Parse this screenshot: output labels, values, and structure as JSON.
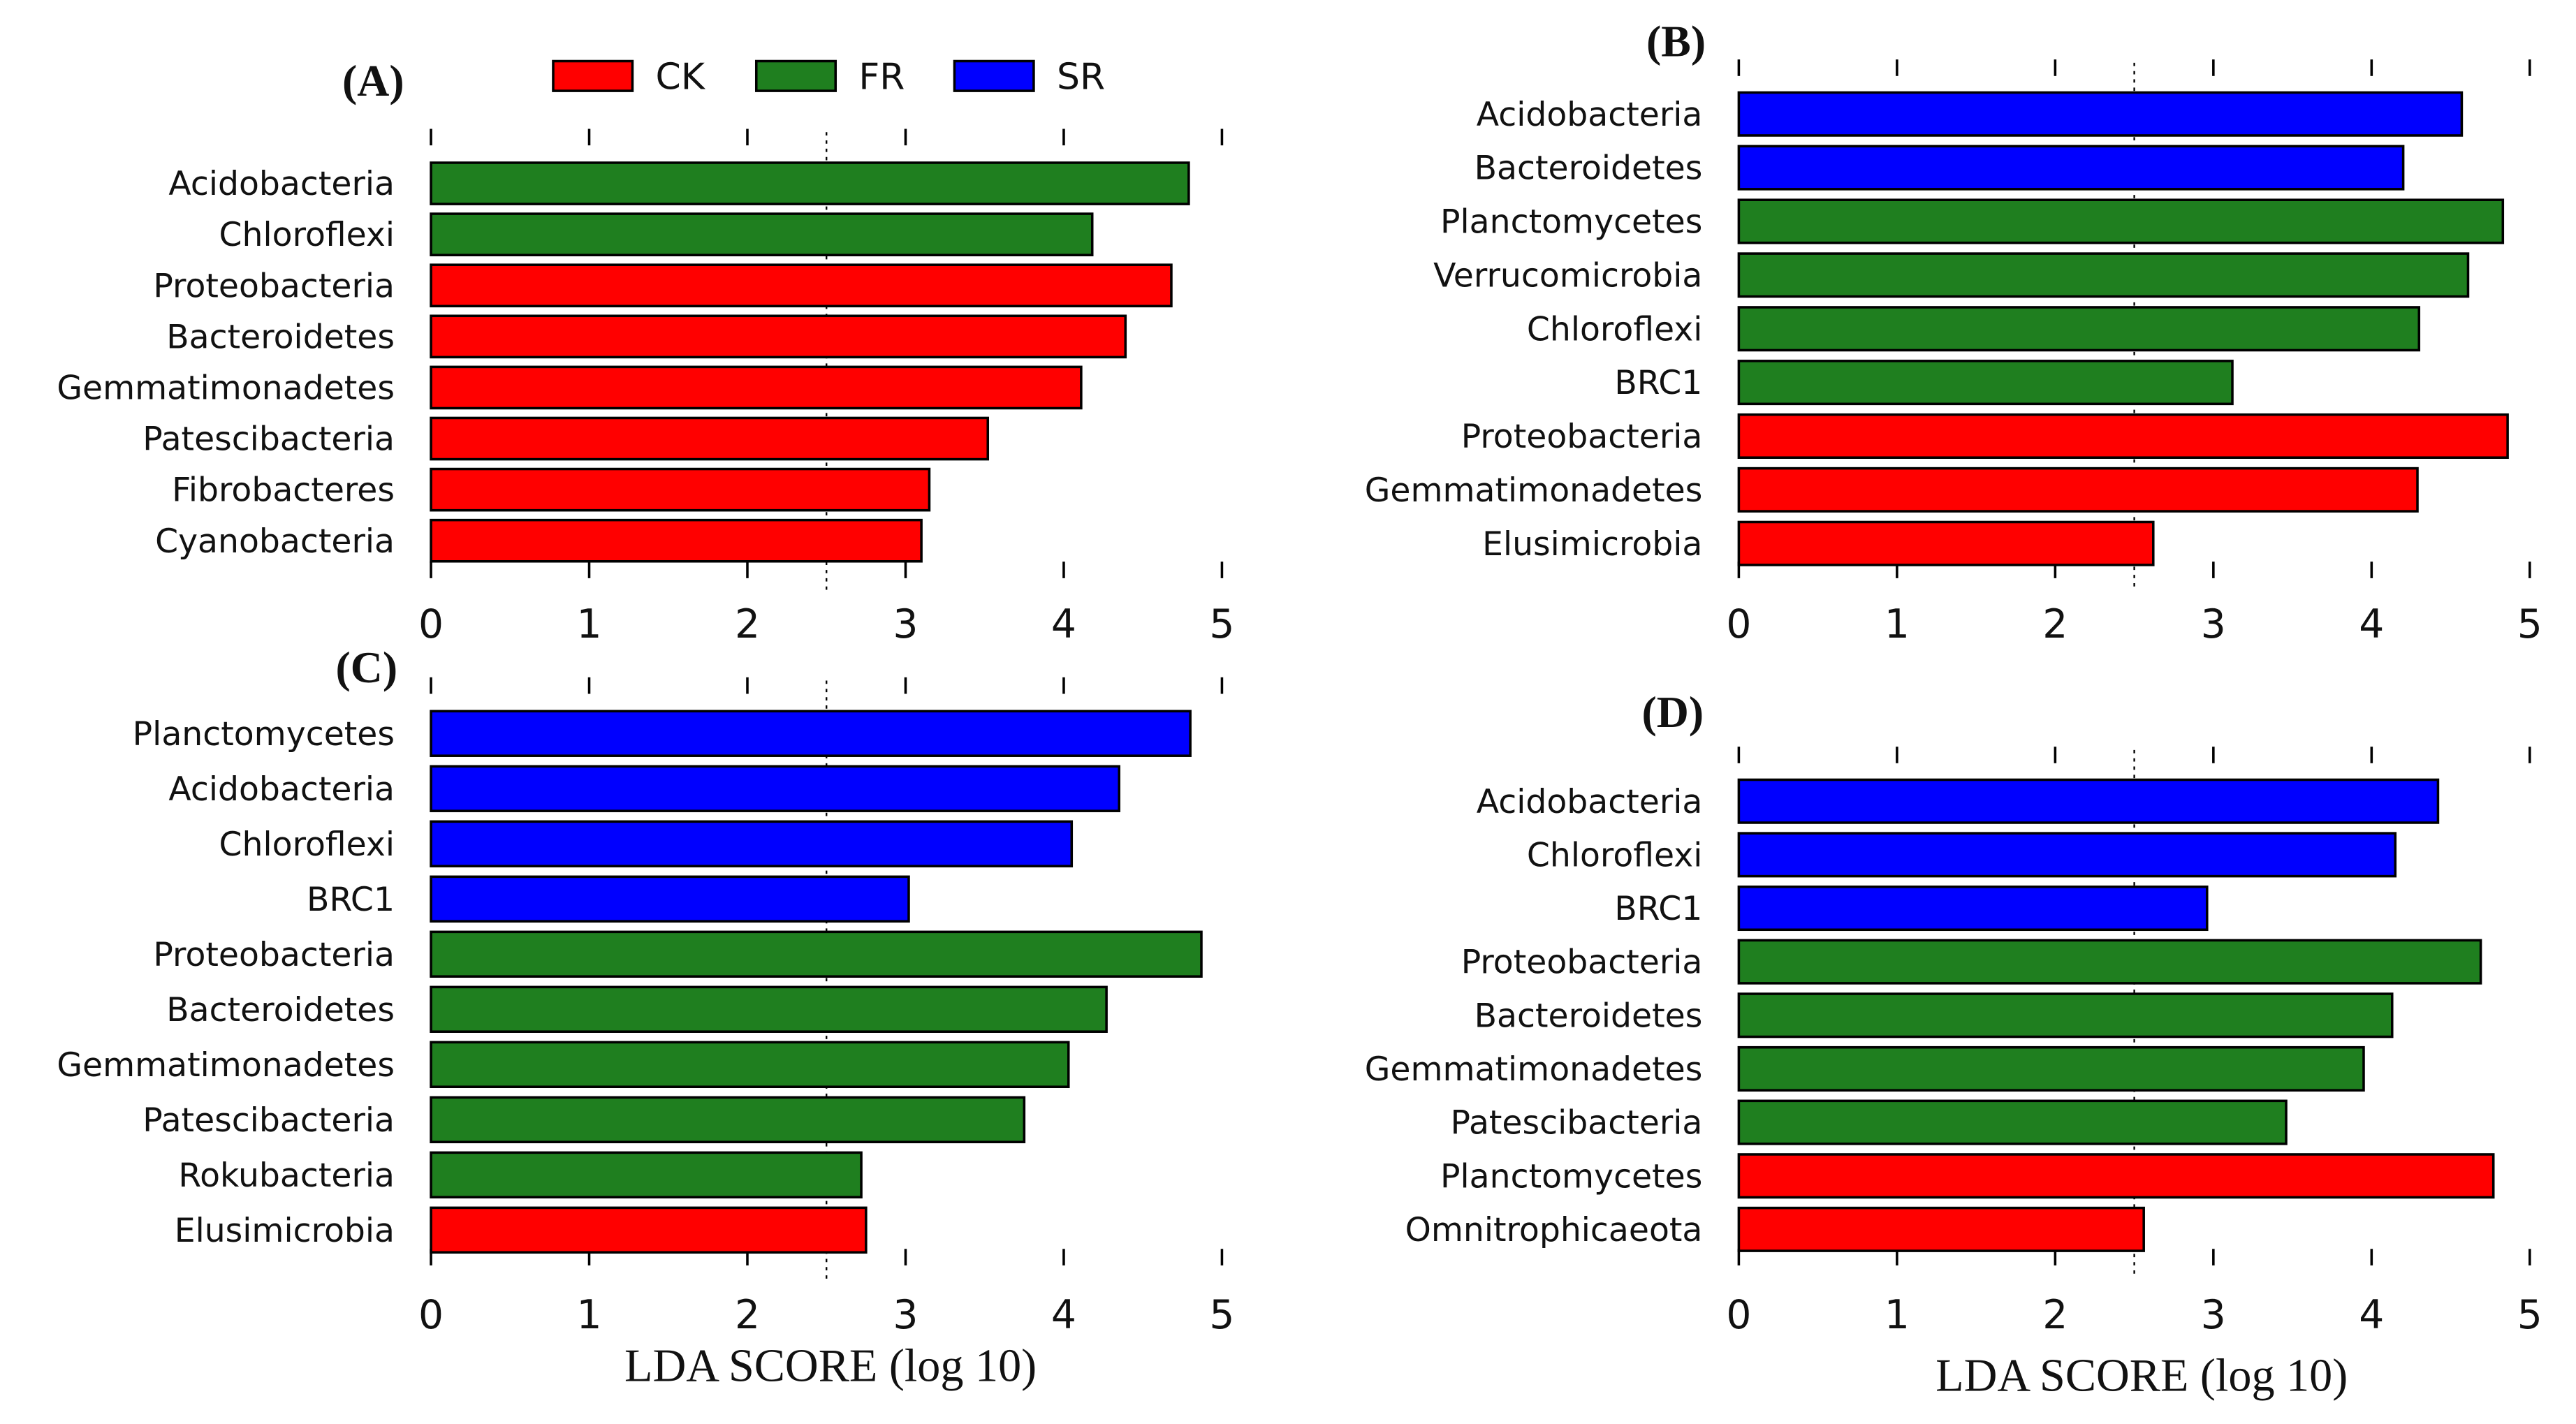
{
  "legend": [
    {
      "label": "CK",
      "color": "#ff0000"
    },
    {
      "label": "FR",
      "color": "#1f7f1f"
    },
    {
      "label": "SR",
      "color": "#0000ff"
    }
  ],
  "chart_data": [
    {
      "type": "bar",
      "orientation": "horizontal",
      "title": "(A)",
      "xlabel": "",
      "xlim": [
        0,
        5
      ],
      "xticks": [
        "0",
        "1",
        "2",
        "3",
        "4",
        "5"
      ],
      "threshold": 2.5,
      "categories": [
        "Acidobacteria",
        "Chloroflexi",
        "Proteobacteria",
        "Bacteroidetes",
        "Gemmatimonadetes",
        "Patescibacteria",
        "Fibrobacteres",
        "Cyanobacteria"
      ],
      "values": [
        4.79,
        4.18,
        4.68,
        4.39,
        4.11,
        3.52,
        3.15,
        3.1
      ],
      "groups": [
        "FR",
        "FR",
        "CK",
        "CK",
        "CK",
        "CK",
        "CK",
        "CK"
      ]
    },
    {
      "type": "bar",
      "orientation": "horizontal",
      "title": "(B)",
      "xlabel": "",
      "xlim": [
        0,
        5
      ],
      "xticks": [
        "0",
        "1",
        "2",
        "3",
        "4",
        "5"
      ],
      "threshold": 2.5,
      "categories": [
        "Acidobacteria",
        "Bacteroidetes",
        "Planctomycetes",
        "Verrucomicrobia",
        "Chloroflexi",
        "BRC1",
        "Proteobacteria",
        "Gemmatimonadetes",
        "Elusimicrobia"
      ],
      "values": [
        4.57,
        4.2,
        4.83,
        4.61,
        4.3,
        3.12,
        4.86,
        4.29,
        2.62
      ],
      "groups": [
        "SR",
        "SR",
        "FR",
        "FR",
        "FR",
        "FR",
        "CK",
        "CK",
        "CK"
      ]
    },
    {
      "type": "bar",
      "orientation": "horizontal",
      "title": "(C)",
      "xlabel": "LDA SCORE (log 10)",
      "xlim": [
        0,
        5
      ],
      "xticks": [
        "0",
        "1",
        "2",
        "3",
        "4",
        "5"
      ],
      "threshold": 2.5,
      "categories": [
        "Planctomycetes",
        "Acidobacteria",
        "Chloroflexi",
        "BRC1",
        "Proteobacteria",
        "Bacteroidetes",
        "Gemmatimonadetes",
        "Patescibacteria",
        "Rokubacteria",
        "Elusimicrobia"
      ],
      "values": [
        4.8,
        4.35,
        4.05,
        3.02,
        4.87,
        4.27,
        4.03,
        3.75,
        2.72,
        2.75
      ],
      "groups": [
        "SR",
        "SR",
        "SR",
        "SR",
        "FR",
        "FR",
        "FR",
        "FR",
        "FR",
        "CK"
      ]
    },
    {
      "type": "bar",
      "orientation": "horizontal",
      "title": "(D)",
      "xlabel": "LDA SCORE (log 10)",
      "xlim": [
        0,
        5
      ],
      "xticks": [
        "0",
        "1",
        "2",
        "3",
        "4",
        "5"
      ],
      "threshold": 2.5,
      "categories": [
        "Acidobacteria",
        "Chloroflexi",
        "BRC1",
        "Proteobacteria",
        "Bacteroidetes",
        "Gemmatimonadetes",
        "Patescibacteria",
        "Planctomycetes",
        "Omnitrophicaeota"
      ],
      "values": [
        4.42,
        4.15,
        2.96,
        4.69,
        4.13,
        3.95,
        3.46,
        4.77,
        2.56
      ],
      "groups": [
        "SR",
        "SR",
        "SR",
        "FR",
        "FR",
        "FR",
        "FR",
        "CK",
        "CK"
      ]
    }
  ]
}
